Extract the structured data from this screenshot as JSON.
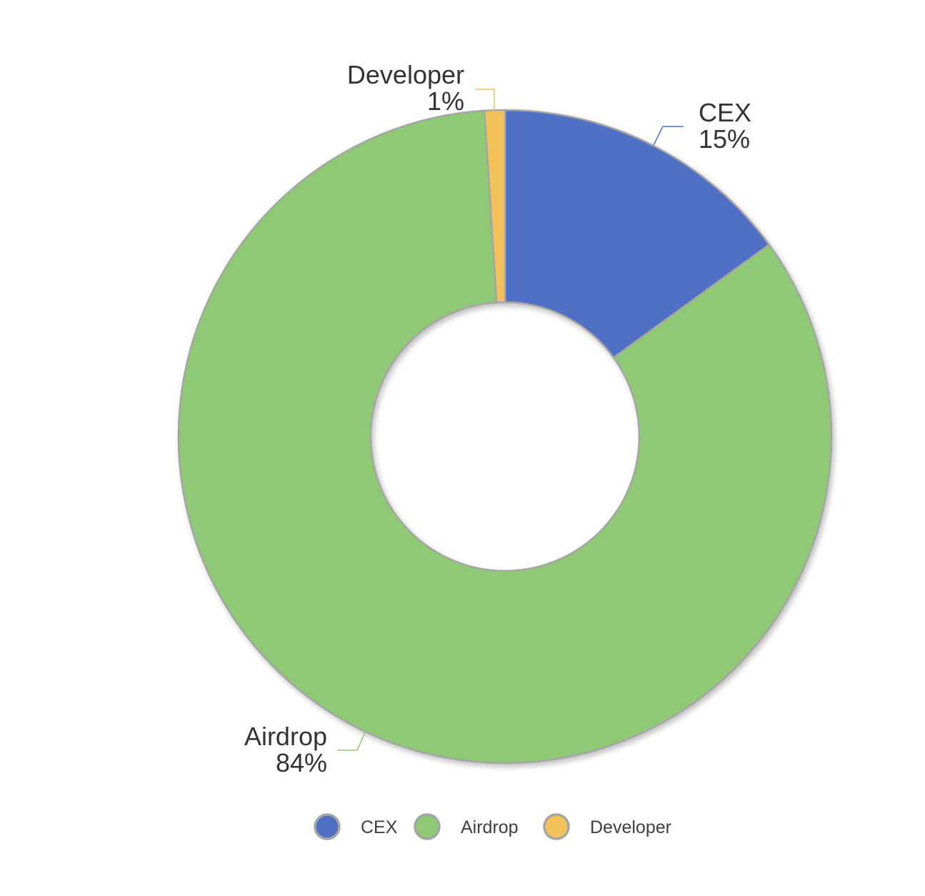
{
  "chart_data": {
    "type": "pie",
    "donut": true,
    "title": "",
    "slices": [
      {
        "label": "CEX",
        "value": 15,
        "display": "15%",
        "color": "#4f6fc4"
      },
      {
        "label": "Airdrop",
        "value": 84,
        "display": "84%",
        "color": "#8fc975"
      },
      {
        "label": "Developer",
        "value": 1,
        "display": "1%",
        "color": "#f2c15a"
      }
    ],
    "legend": {
      "position": "bottom",
      "entries": [
        "CEX",
        "Airdrop",
        "Developer"
      ]
    },
    "slice_border_color": "#a5a5a5"
  }
}
